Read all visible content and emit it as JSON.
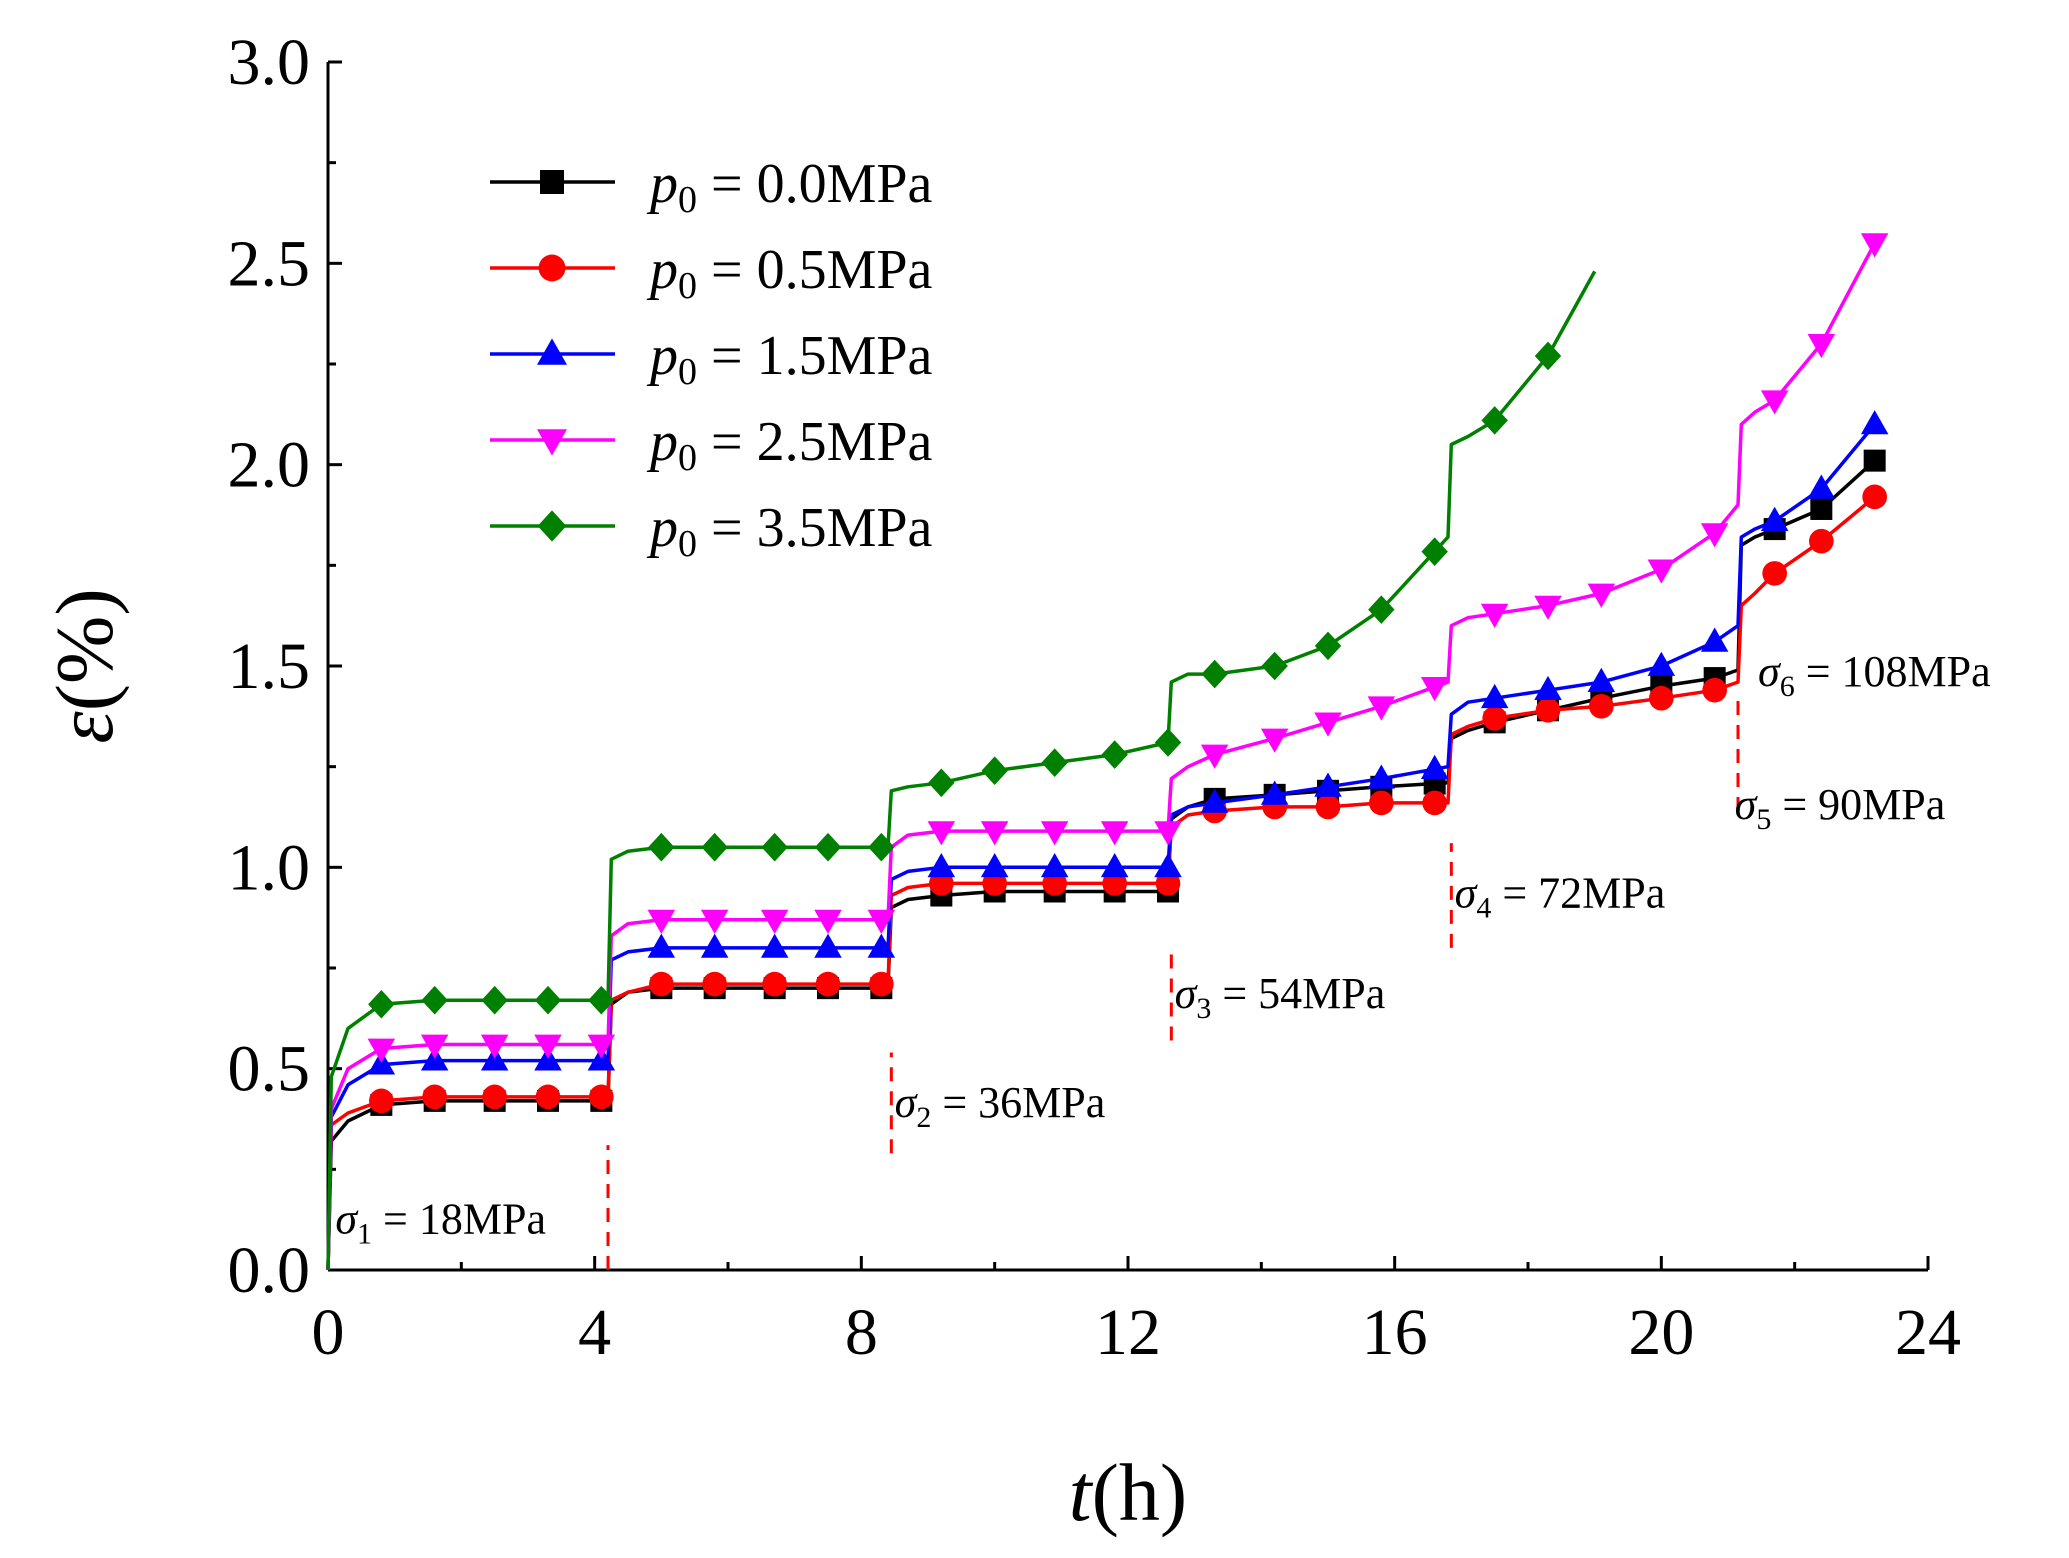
{
  "chart_data": {
    "type": "line",
    "title": "",
    "xlabel": {
      "var": "t",
      "unit": "(h)"
    },
    "ylabel": {
      "var": "ε",
      "unit": "(%)"
    },
    "xlim": [
      0,
      24
    ],
    "ylim": [
      0,
      3.0
    ],
    "xticks": [
      "0",
      "4",
      "8",
      "12",
      "16",
      "20",
      "24"
    ],
    "yticks": [
      "0.0",
      "0.5",
      "1.0",
      "1.5",
      "2.0",
      "2.5",
      "3.0"
    ],
    "grid": false,
    "legend_position": "top-left",
    "series": [
      {
        "name": "p0 = 0.0MPa",
        "label": {
          "sym": "p",
          "sub": "0",
          "rest": " = 0.0MPa"
        },
        "color": "#000000",
        "marker": "square",
        "x": [
          0,
          0.05,
          0.3,
          0.8,
          1.6,
          2.5,
          3.3,
          4.2,
          4.25,
          4.5,
          5.0,
          5.8,
          6.7,
          7.5,
          8.4,
          8.45,
          8.7,
          9.2,
          10.0,
          10.9,
          11.8,
          12.6,
          12.65,
          12.9,
          13.3,
          14.2,
          15.0,
          15.8,
          16.8,
          16.85,
          17.1,
          17.5,
          18.3,
          19.1,
          20.0,
          20.8,
          21.15,
          21.2,
          21.4,
          21.7,
          22.4,
          23.2
        ],
        "y": [
          0,
          0.32,
          0.37,
          0.41,
          0.42,
          0.42,
          0.42,
          0.42,
          0.66,
          0.69,
          0.7,
          0.7,
          0.7,
          0.7,
          0.7,
          0.9,
          0.92,
          0.93,
          0.94,
          0.94,
          0.94,
          0.94,
          1.12,
          1.15,
          1.17,
          1.18,
          1.19,
          1.2,
          1.21,
          1.32,
          1.34,
          1.36,
          1.39,
          1.42,
          1.45,
          1.47,
          1.49,
          1.8,
          1.82,
          1.84,
          1.89,
          2.01
        ]
      },
      {
        "name": "p0 = 0.5MPa",
        "label": {
          "sym": "p",
          "sub": "0",
          "rest": " = 0.5MPa"
        },
        "color": "#ff0000",
        "marker": "circle",
        "x": [
          0,
          0.05,
          0.3,
          0.8,
          1.6,
          2.5,
          3.3,
          4.2,
          4.25,
          4.5,
          5.0,
          5.8,
          6.7,
          7.5,
          8.4,
          8.45,
          8.7,
          9.2,
          10.0,
          10.9,
          11.8,
          12.6,
          12.65,
          12.9,
          13.3,
          14.2,
          15.0,
          15.8,
          16.8,
          16.85,
          17.1,
          17.5,
          18.3,
          19.1,
          20.0,
          20.8,
          21.15,
          21.2,
          21.4,
          21.7,
          22.4,
          23.2
        ],
        "y": [
          0,
          0.36,
          0.39,
          0.42,
          0.43,
          0.43,
          0.43,
          0.43,
          0.67,
          0.69,
          0.71,
          0.71,
          0.71,
          0.71,
          0.71,
          0.93,
          0.95,
          0.96,
          0.96,
          0.96,
          0.96,
          0.96,
          1.1,
          1.13,
          1.14,
          1.15,
          1.15,
          1.16,
          1.16,
          1.33,
          1.35,
          1.37,
          1.39,
          1.4,
          1.42,
          1.44,
          1.46,
          1.65,
          1.68,
          1.73,
          1.81,
          1.92
        ]
      },
      {
        "name": "p0 = 1.5MPa",
        "label": {
          "sym": "p",
          "sub": "0",
          "rest": " = 1.5MPa"
        },
        "color": "#0000ff",
        "marker": "triangle-up",
        "x": [
          0,
          0.05,
          0.3,
          0.8,
          1.6,
          2.5,
          3.3,
          4.2,
          4.25,
          4.5,
          5.0,
          5.8,
          6.7,
          7.5,
          8.4,
          8.45,
          8.7,
          9.2,
          10.0,
          10.9,
          11.8,
          12.6,
          12.65,
          12.9,
          13.3,
          14.2,
          15.0,
          15.8,
          16.8,
          16.85,
          17.1,
          17.5,
          18.3,
          19.1,
          20.0,
          20.8,
          21.15,
          21.2,
          21.4,
          21.7,
          22.4,
          23.2
        ],
        "y": [
          0,
          0.38,
          0.46,
          0.51,
          0.52,
          0.52,
          0.52,
          0.52,
          0.77,
          0.79,
          0.8,
          0.8,
          0.8,
          0.8,
          0.8,
          0.97,
          0.99,
          1.0,
          1.0,
          1.0,
          1.0,
          1.0,
          1.13,
          1.15,
          1.16,
          1.18,
          1.2,
          1.22,
          1.25,
          1.38,
          1.41,
          1.42,
          1.44,
          1.46,
          1.5,
          1.56,
          1.6,
          1.82,
          1.84,
          1.86,
          1.94,
          2.1
        ]
      },
      {
        "name": "p0 = 2.5MPa",
        "label": {
          "sym": "p",
          "sub": "0",
          "rest": " = 2.5MPa"
        },
        "color": "#ff00ff",
        "marker": "triangle-down",
        "x": [
          0,
          0.05,
          0.3,
          0.8,
          1.6,
          2.5,
          3.3,
          4.2,
          4.25,
          4.5,
          5.0,
          5.8,
          6.7,
          7.5,
          8.4,
          8.45,
          8.7,
          9.2,
          10.0,
          10.9,
          11.8,
          12.6,
          12.65,
          12.9,
          13.3,
          14.2,
          15.0,
          15.8,
          16.8,
          16.85,
          17.1,
          17.5,
          18.3,
          19.1,
          20.0,
          20.8,
          21.15,
          21.2,
          21.4,
          21.7,
          22.4,
          23.2
        ],
        "y": [
          0,
          0.4,
          0.5,
          0.55,
          0.56,
          0.56,
          0.56,
          0.56,
          0.83,
          0.86,
          0.87,
          0.87,
          0.87,
          0.87,
          0.87,
          1.05,
          1.08,
          1.09,
          1.09,
          1.09,
          1.09,
          1.09,
          1.22,
          1.25,
          1.28,
          1.32,
          1.36,
          1.4,
          1.46,
          1.6,
          1.62,
          1.63,
          1.65,
          1.68,
          1.74,
          1.83,
          1.9,
          2.1,
          2.13,
          2.16,
          2.3,
          2.55
        ]
      },
      {
        "name": "p0 = 3.5MPa",
        "label": {
          "sym": "p",
          "sub": "0",
          "rest": " = 3.5MPa"
        },
        "color": "#008000",
        "marker": "diamond",
        "x": [
          0,
          0.05,
          0.3,
          0.8,
          1.6,
          2.5,
          3.3,
          4.2,
          4.25,
          4.5,
          5.0,
          5.8,
          6.7,
          7.5,
          8.4,
          8.45,
          8.7,
          9.2,
          10.0,
          10.9,
          11.8,
          12.6,
          12.65,
          12.9,
          13.3,
          14.2,
          15.0,
          15.8,
          16.8,
          16.85,
          17.1,
          17.5,
          18.3,
          19.0
        ],
        "y": [
          0,
          0.48,
          0.6,
          0.66,
          0.67,
          0.67,
          0.67,
          0.67,
          1.02,
          1.04,
          1.05,
          1.05,
          1.05,
          1.05,
          1.05,
          1.19,
          1.2,
          1.21,
          1.24,
          1.26,
          1.28,
          1.31,
          1.46,
          1.48,
          1.48,
          1.5,
          1.55,
          1.64,
          1.82,
          2.05,
          2.07,
          2.11,
          2.27,
          2.48
        ]
      }
    ],
    "markers_x": [
      0.8,
      1.6,
      2.5,
      3.3,
      4.1,
      5.0,
      5.8,
      6.7,
      7.5,
      8.3,
      9.2,
      10.0,
      10.9,
      11.8,
      12.6,
      13.3,
      14.2,
      15.0,
      15.8,
      16.6,
      17.5,
      18.3,
      19.1,
      20.0,
      20.8,
      21.7,
      22.4,
      23.2
    ],
    "annotations": [
      {
        "sym": "σ",
        "sub": "1",
        "rest": " = 18MPa",
        "x": 4.15,
        "y": 0.13
      },
      {
        "sym": "σ",
        "sub": "2",
        "rest": " = 36MPa",
        "x": 8.35,
        "y": 0.42
      },
      {
        "sym": "σ",
        "sub": "3",
        "rest": " = 54MPa",
        "x": 12.55,
        "y": 0.69
      },
      {
        "sym": "σ",
        "sub": "4",
        "rest": " = 72MPa",
        "x": 16.75,
        "y": 0.94
      },
      {
        "sym": "σ",
        "sub": "5",
        "rest": " = 90MPa",
        "x": 20.95,
        "y": 1.16
      },
      {
        "sym": "σ",
        "sub": "6",
        "rest": " = 108MPa",
        "x": 21.3,
        "y": 1.49
      }
    ],
    "stage_markers": [
      {
        "x": 4.2,
        "y_from": 0.0,
        "y_to": 0.31
      },
      {
        "x": 8.45,
        "y_from": 0.29,
        "y_to": 0.54
      },
      {
        "x": 12.65,
        "y_from": 0.57,
        "y_to": 0.79
      },
      {
        "x": 16.85,
        "y_from": 0.8,
        "y_to": 1.06
      },
      {
        "x": 21.15,
        "y_from": 1.14,
        "y_to": 1.42
      }
    ]
  }
}
